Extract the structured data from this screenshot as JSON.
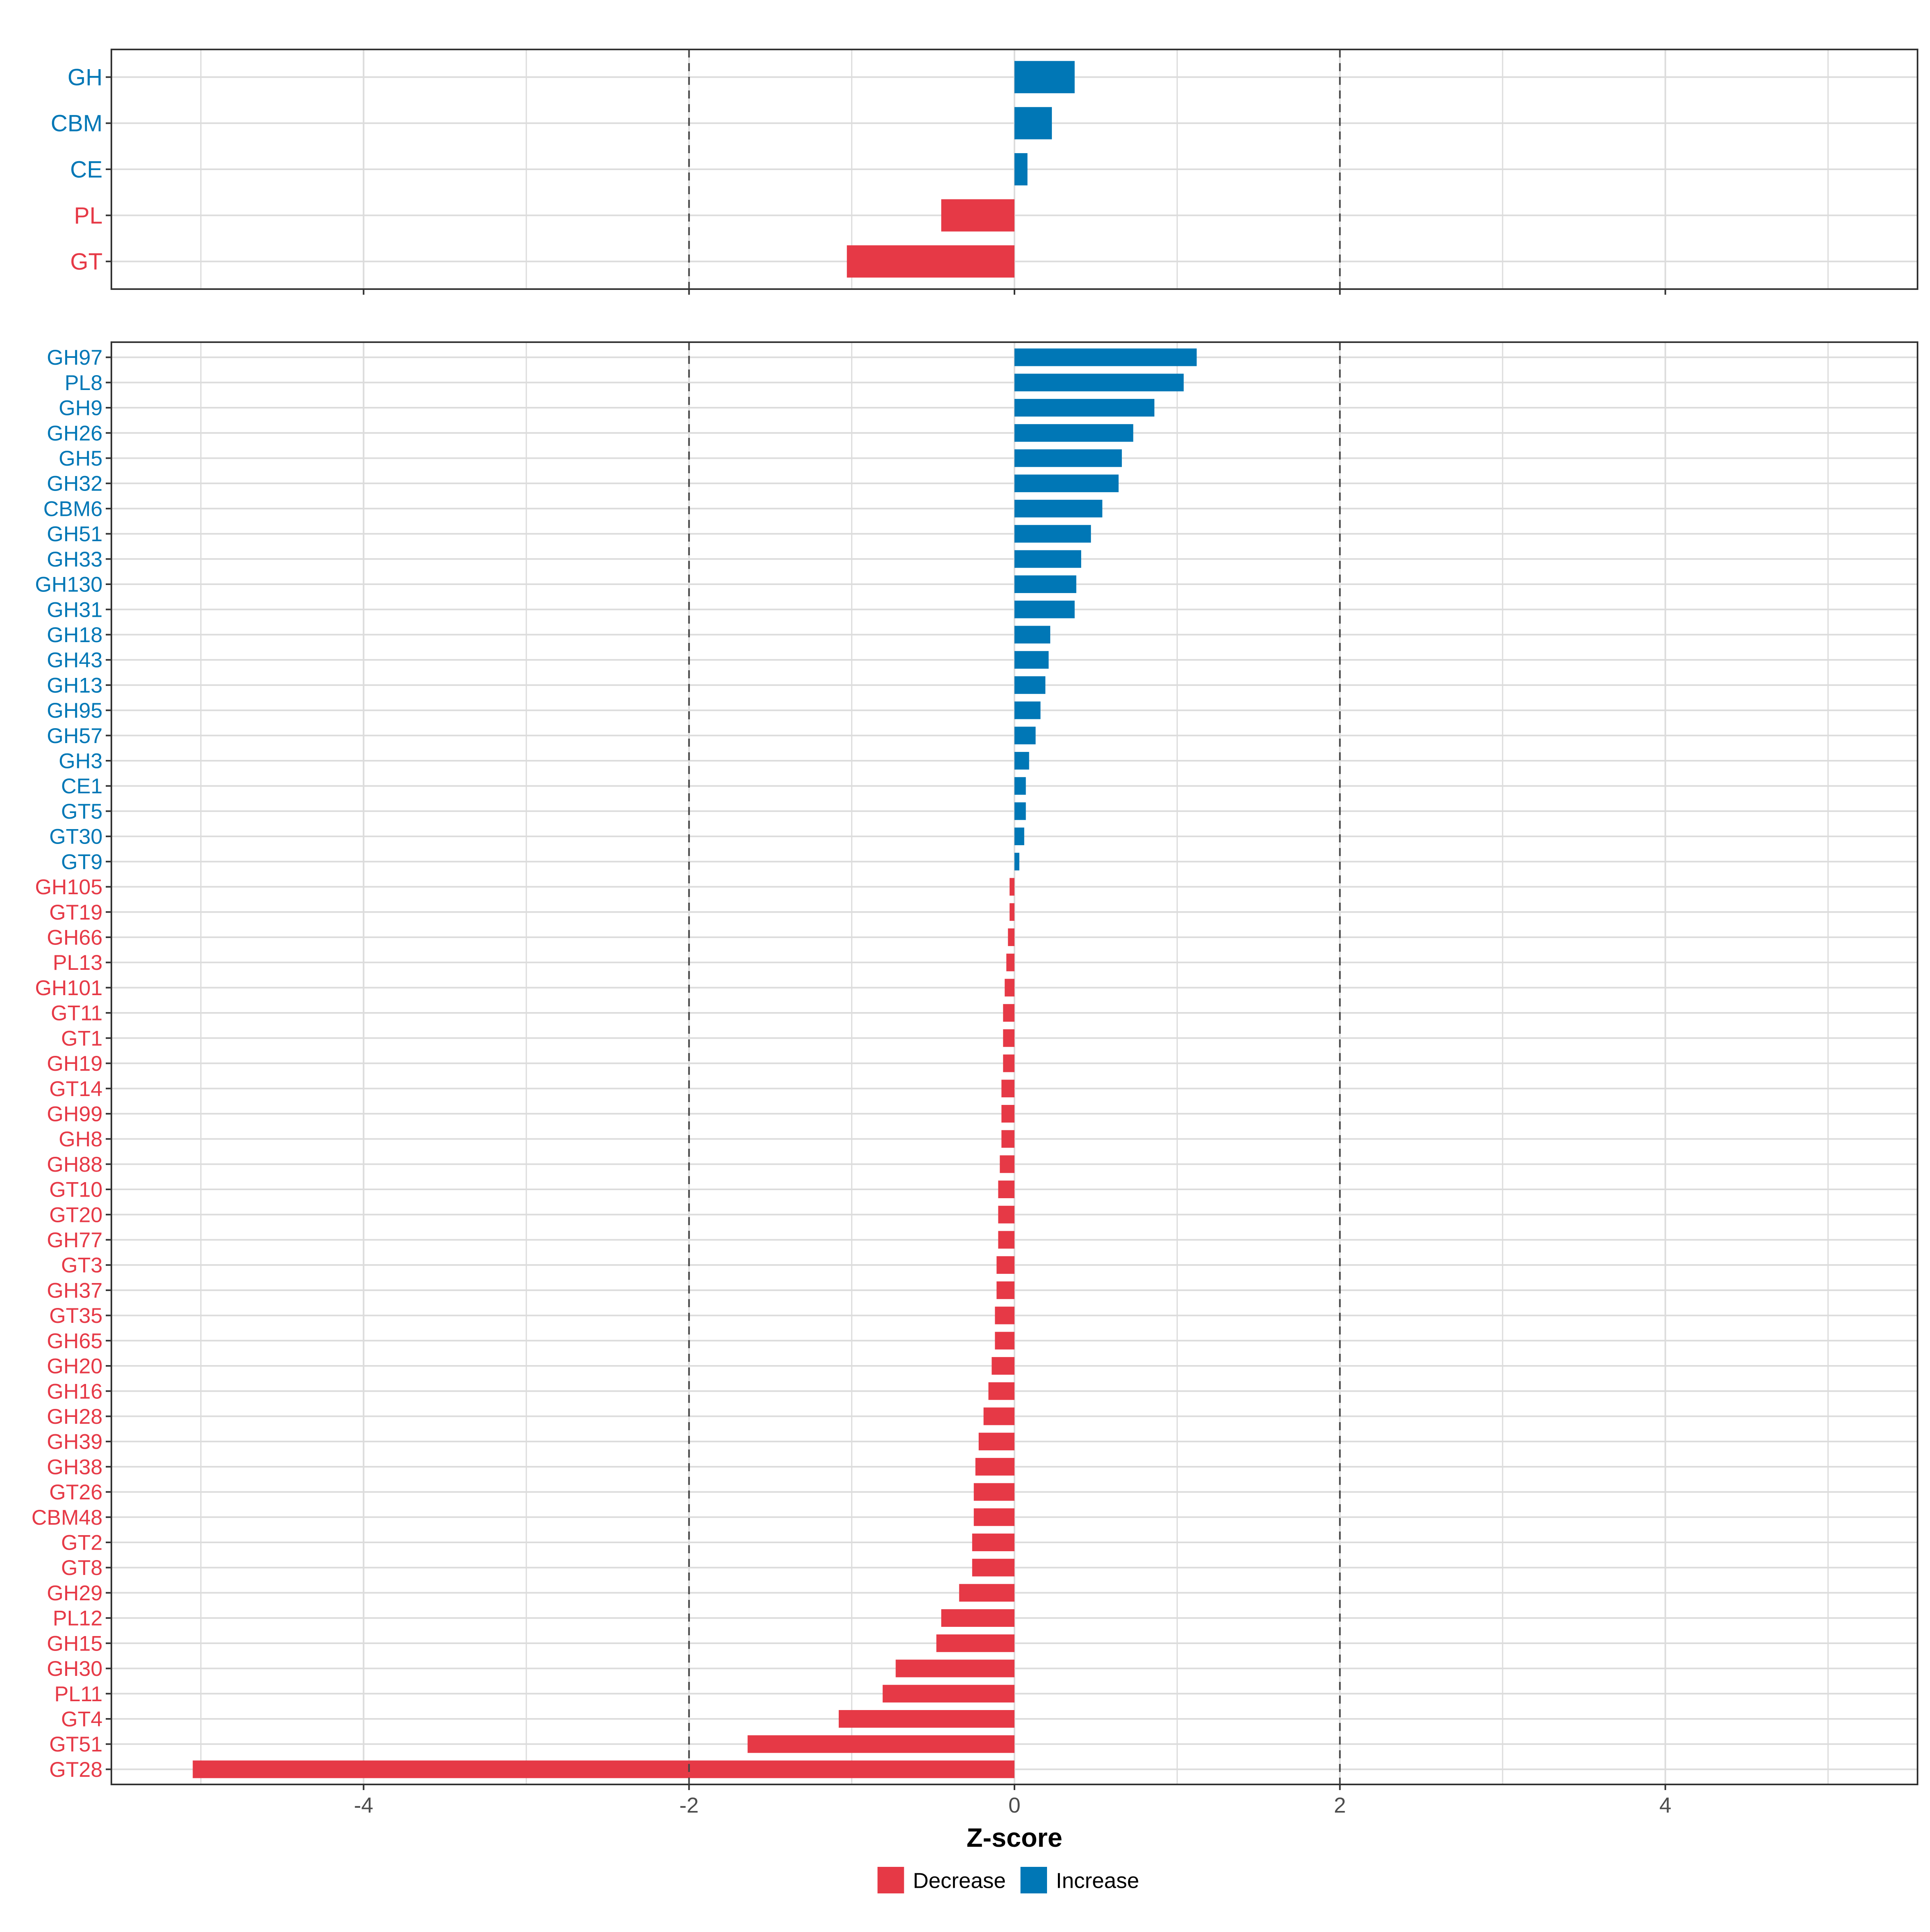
{
  "chart_data": {
    "type": "bar",
    "orientation": "horizontal",
    "xlabel": "Z-score",
    "xlim": [
      -5.55,
      5.55
    ],
    "xticks": [
      -4,
      -2,
      0,
      2,
      4
    ],
    "xtick_labels": [
      "-4",
      "-2",
      "0",
      "2",
      "4"
    ],
    "reference_lines": [
      -2,
      2
    ],
    "grid": true,
    "colors": {
      "decrease": "#E63946",
      "increase": "#0077B6"
    },
    "legend": {
      "position": "bottom",
      "entries": [
        {
          "key": "decrease",
          "label": "Decrease"
        },
        {
          "key": "increase",
          "label": "Increase"
        }
      ]
    },
    "panels": [
      {
        "name": "class-level",
        "categories": [
          "GH",
          "CBM",
          "CE",
          "PL",
          "GT"
        ],
        "values": [
          0.37,
          0.23,
          0.08,
          -0.45,
          -1.03
        ]
      },
      {
        "name": "family-level",
        "categories": [
          "GH97",
          "PL8",
          "GH9",
          "GH26",
          "GH5",
          "GH32",
          "CBM6",
          "GH51",
          "GH33",
          "GH130",
          "GH31",
          "GH18",
          "GH43",
          "GH13",
          "GH95",
          "GH57",
          "GH3",
          "CE1",
          "GT5",
          "GT30",
          "GT9",
          "GH105",
          "GT19",
          "GH66",
          "PL13",
          "GH101",
          "GT11",
          "GT1",
          "GH19",
          "GT14",
          "GH99",
          "GH8",
          "GH88",
          "GT10",
          "GT20",
          "GH77",
          "GT3",
          "GH37",
          "GT35",
          "GH65",
          "GH20",
          "GH16",
          "GH28",
          "GH39",
          "GH38",
          "GT26",
          "CBM48",
          "GT2",
          "GT8",
          "GH29",
          "PL12",
          "GH15",
          "GH30",
          "PL11",
          "GT4",
          "GT51",
          "GT28"
        ],
        "values": [
          1.12,
          1.04,
          0.86,
          0.73,
          0.66,
          0.64,
          0.54,
          0.47,
          0.41,
          0.38,
          0.37,
          0.22,
          0.21,
          0.19,
          0.16,
          0.13,
          0.09,
          0.07,
          0.07,
          0.06,
          0.03,
          -0.03,
          -0.03,
          -0.04,
          -0.05,
          -0.06,
          -0.07,
          -0.07,
          -0.07,
          -0.08,
          -0.08,
          -0.08,
          -0.09,
          -0.1,
          -0.1,
          -0.1,
          -0.11,
          -0.11,
          -0.12,
          -0.12,
          -0.14,
          -0.16,
          -0.19,
          -0.22,
          -0.24,
          -0.25,
          -0.25,
          -0.26,
          -0.26,
          -0.34,
          -0.45,
          -0.48,
          -0.73,
          -0.81,
          -1.08,
          -1.64,
          -5.05
        ]
      }
    ]
  }
}
